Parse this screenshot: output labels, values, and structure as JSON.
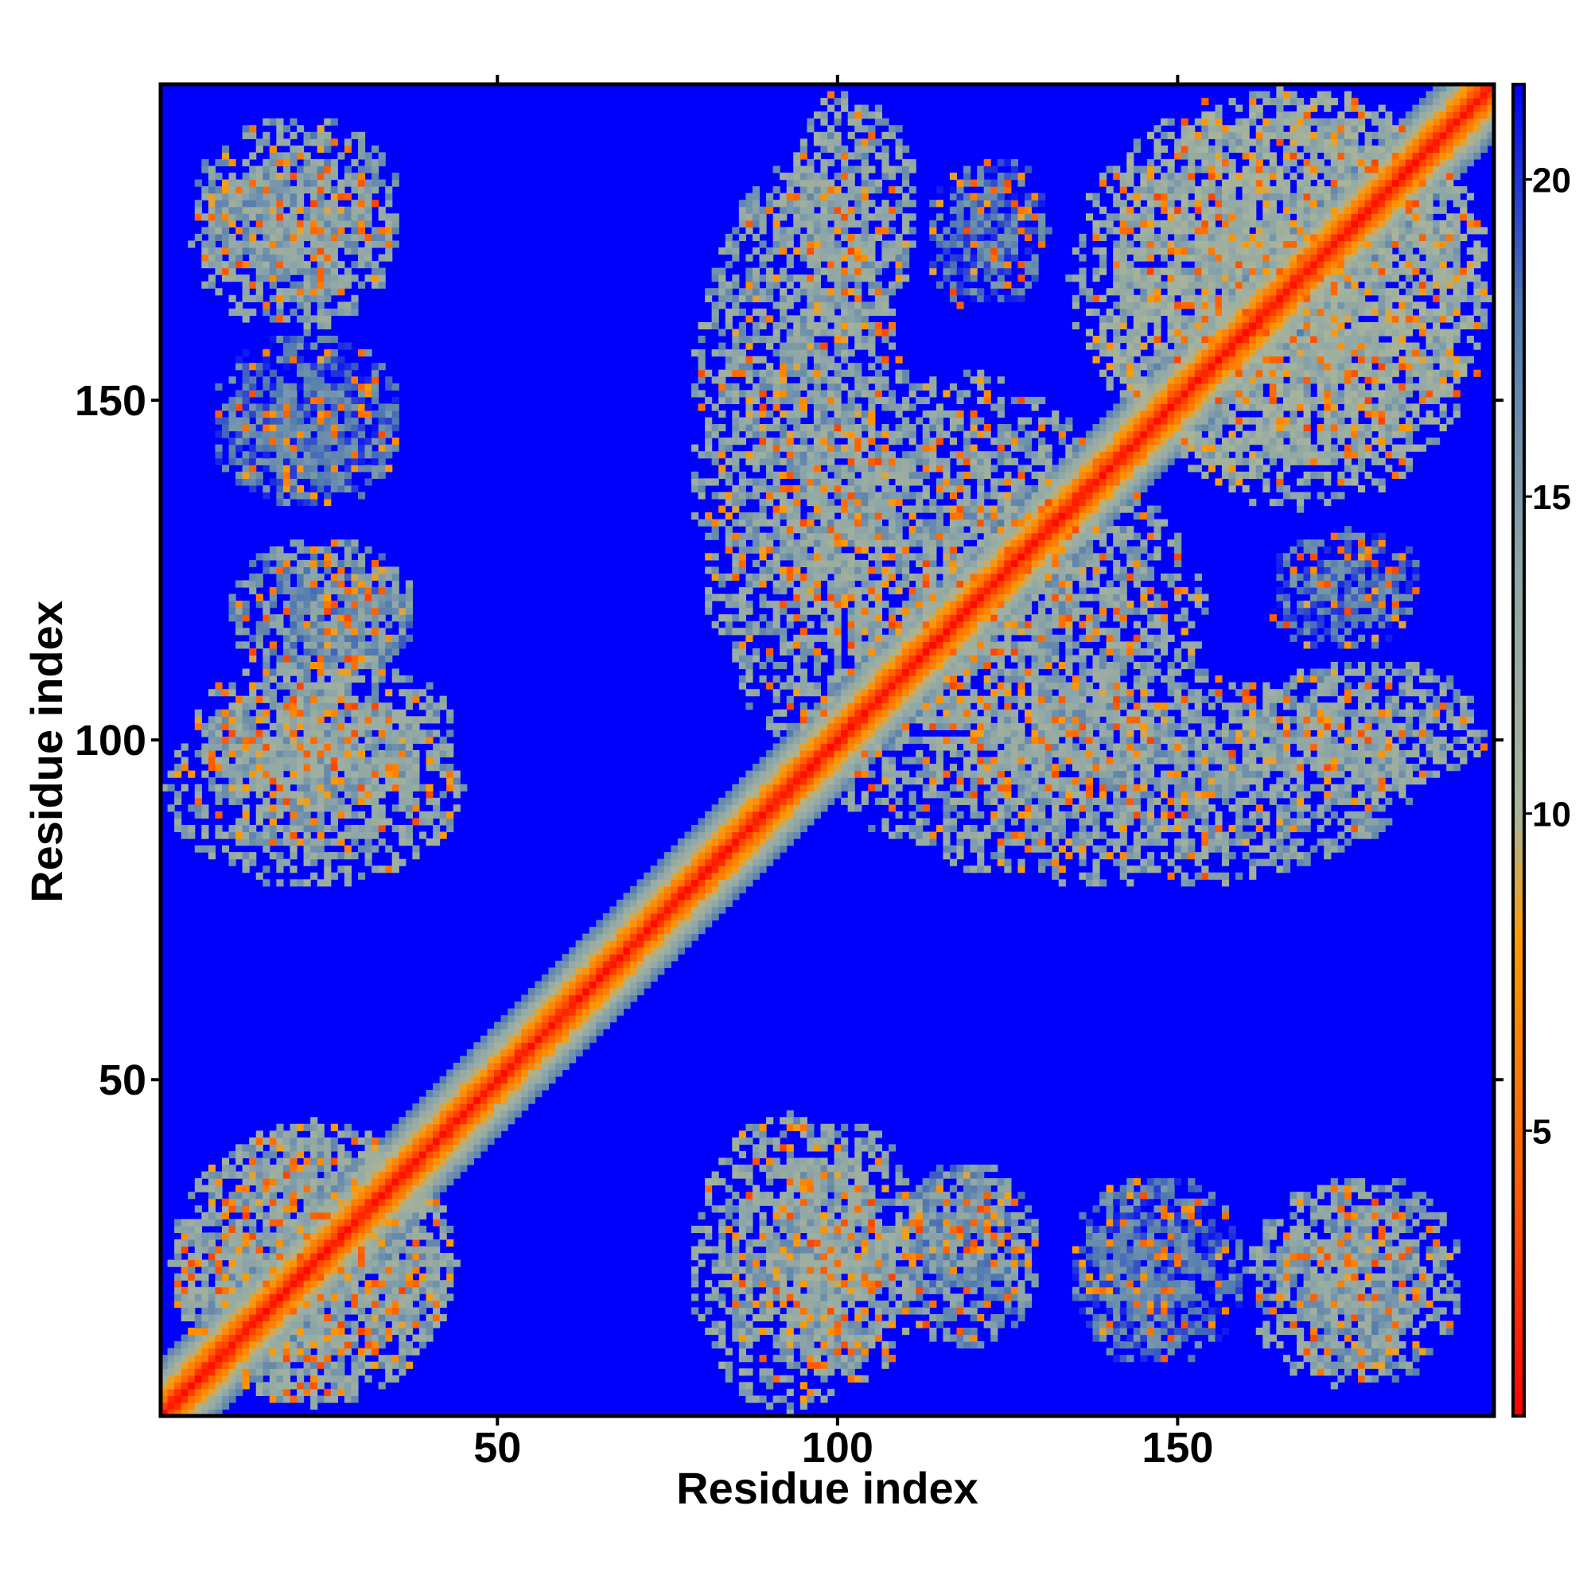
{
  "chart_data": {
    "type": "heatmap",
    "title": "",
    "xlabel": "Residue index",
    "ylabel": "Residue index",
    "xlim": [
      1,
      196
    ],
    "ylim": [
      1,
      196
    ],
    "x_ticks": [
      50,
      100,
      150
    ],
    "y_ticks": [
      50,
      100,
      150
    ],
    "x_tick_labels": [
      "50",
      "100",
      "150"
    ],
    "y_tick_labels": [
      "50",
      "100",
      "150"
    ],
    "colorbar": {
      "range": [
        0.5,
        21.5
      ],
      "ticks": [
        5,
        10,
        15,
        20
      ],
      "tick_labels": [
        "5",
        "10",
        "15",
        "20"
      ],
      "colors": [
        "#ff0000",
        "#ff5a00",
        "#ff9a00",
        "#a9b49a",
        "#8ca5a8",
        "#4f79b0",
        "#0000ff"
      ],
      "color_stops": [
        0,
        4,
        8,
        10,
        14,
        18,
        21.5
      ]
    },
    "background_value": 21.5,
    "symmetric": true,
    "diagonal_band": {
      "description_values": [
        {
          "offset": 0,
          "value": 1
        },
        {
          "offset": 1,
          "value": 2.5
        },
        {
          "offset": 2,
          "value": 5
        },
        {
          "offset": 3,
          "value": 7
        },
        {
          "offset": 4,
          "value": 9
        },
        {
          "offset": 5,
          "value": 11
        },
        {
          "offset": 6,
          "value": 13
        },
        {
          "offset": 7,
          "value": 15
        },
        {
          "offset": 8,
          "value": 17
        }
      ]
    },
    "contact_clusters": [
      {
        "x_range": [
          2,
          44
        ],
        "y_range": [
          2,
          44
        ],
        "mean_value": 14
      },
      {
        "x_range": [
          5,
          44
        ],
        "y_range": [
          90,
          113
        ],
        "mean_value": 14
      },
      {
        "x_range": [
          20,
          38
        ],
        "y_range": [
          110,
          128
        ],
        "mean_value": 16
      },
      {
        "x_range": [
          8,
          36
        ],
        "y_range": [
          135,
          160
        ],
        "mean_value": 18
      },
      {
        "x_range": [
          5,
          36
        ],
        "y_range": [
          165,
          192
        ],
        "mean_value": 15
      },
      {
        "x_range": [
          78,
          108
        ],
        "y_range": [
          1,
          45
        ],
        "mean_value": 14
      },
      {
        "x_range": [
          108,
          130
        ],
        "y_range": [
          10,
          38
        ],
        "mean_value": 16
      },
      {
        "x_range": [
          134,
          155
        ],
        "y_range": [
          8,
          36
        ],
        "mean_value": 18
      },
      {
        "x_range": [
          160,
          186
        ],
        "y_range": [
          5,
          35
        ],
        "mean_value": 14
      },
      {
        "x_range": [
          78,
          110
        ],
        "y_range": [
          100,
          185
        ],
        "mean_value": 14
      },
      {
        "x_range": [
          110,
          155
        ],
        "y_range": [
          90,
          140
        ],
        "mean_value": 14
      },
      {
        "x_range": [
          134,
          196
        ],
        "y_range": [
          140,
          196
        ],
        "mean_value": 13
      },
      {
        "x_range": [
          160,
          196
        ],
        "y_range": [
          92,
          112
        ],
        "mean_value": 14
      },
      {
        "x_range": [
          164,
          186
        ],
        "y_range": [
          118,
          131
        ],
        "mean_value": 18
      },
      {
        "x_range": [
          113,
          126
        ],
        "y_range": [
          163,
          185
        ],
        "mean_value": 18
      }
    ]
  }
}
